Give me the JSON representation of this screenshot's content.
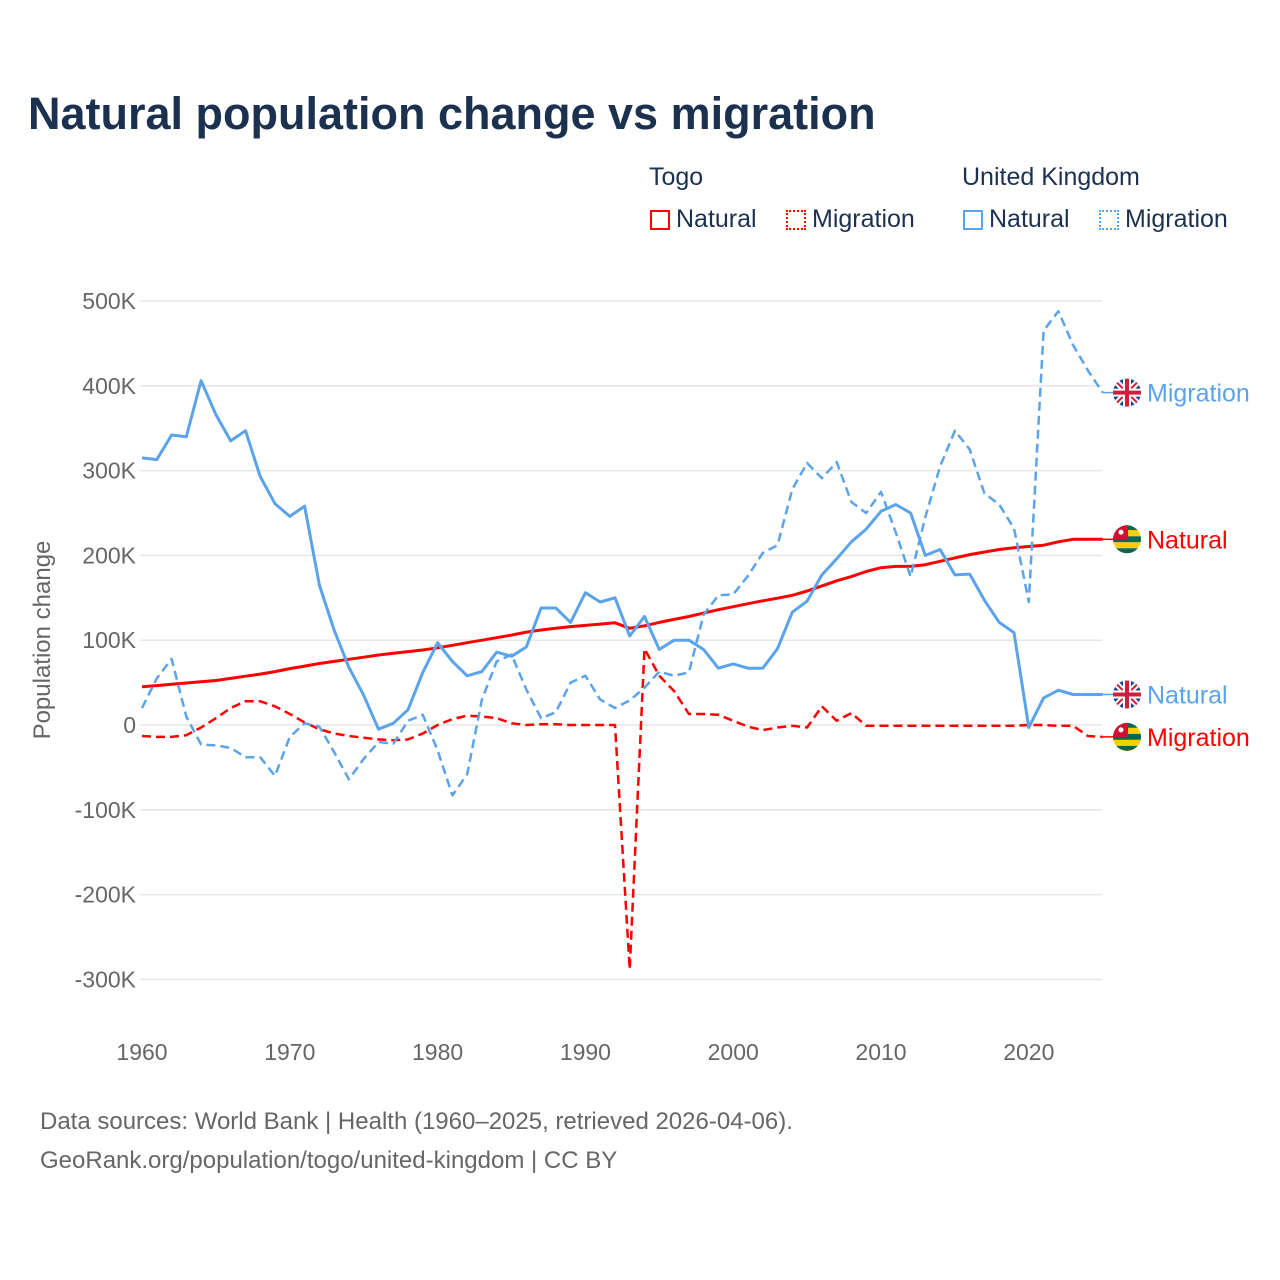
{
  "title": "Natural population change vs migration",
  "legend": {
    "groups": [
      {
        "name": "Togo",
        "items": [
          {
            "label": "Natural",
            "style": "solid"
          },
          {
            "label": "Migration",
            "style": "dotted"
          }
        ],
        "color": "#ff0000"
      },
      {
        "name": "United Kingdom",
        "items": [
          {
            "label": "Natural",
            "style": "solid"
          },
          {
            "label": "Migration",
            "style": "dotted"
          }
        ],
        "color": "#5ba3ea"
      }
    ]
  },
  "source": {
    "line1": "Data sources: World Bank | Health (1960–2025, retrieved 2026-04-06).",
    "line2": "GeoRank.org/population/togo/united-kingdom | CC BY"
  },
  "chart_data": {
    "type": "line",
    "title": "Natural population change vs migration",
    "xlabel": "",
    "ylabel": "Population change",
    "xlim": [
      1960,
      2025
    ],
    "ylim": [
      -300000,
      500000
    ],
    "x_ticks": [
      1960,
      1970,
      1980,
      1990,
      2000,
      2010,
      2020
    ],
    "x_tick_labels": [
      "1960",
      "1970",
      "1980",
      "1990",
      "2000",
      "2010",
      "2020"
    ],
    "y_ticks": [
      500000,
      400000,
      300000,
      200000,
      100000,
      0,
      -100000,
      -200000,
      -300000
    ],
    "y_tick_labels": [
      "500K",
      "400K",
      "300K",
      "200K",
      "100K",
      "0",
      "-100K",
      "-200K",
      "-300K"
    ],
    "grid": true,
    "legend_position": "top-right",
    "x": [
      1960,
      1961,
      1962,
      1963,
      1964,
      1965,
      1966,
      1967,
      1968,
      1969,
      1970,
      1971,
      1972,
      1973,
      1974,
      1975,
      1976,
      1977,
      1978,
      1979,
      1980,
      1981,
      1982,
      1983,
      1984,
      1985,
      1986,
      1987,
      1988,
      1989,
      1990,
      1991,
      1992,
      1993,
      1994,
      1995,
      1996,
      1997,
      1998,
      1999,
      2000,
      2001,
      2002,
      2003,
      2004,
      2005,
      2006,
      2007,
      2008,
      2009,
      2010,
      2011,
      2012,
      2013,
      2014,
      2015,
      2016,
      2017,
      2018,
      2019,
      2020,
      2021,
      2022,
      2023,
      2024,
      2025
    ],
    "series": [
      {
        "name": "Togo Natural",
        "country": "Togo",
        "kind": "Natural",
        "color": "#ff0000",
        "dashed": false,
        "end_label": "Natural",
        "flag": "togo",
        "values": [
          45000,
          46500,
          48000,
          49500,
          51000,
          52500,
          55000,
          57500,
          60000,
          63000,
          66500,
          69500,
          72500,
          75000,
          77500,
          80000,
          82500,
          84500,
          86500,
          88500,
          91000,
          94000,
          97000,
          100000,
          103000,
          106000,
          109500,
          112000,
          114000,
          116000,
          117500,
          119000,
          120500,
          114000,
          117000,
          121000,
          124500,
          128000,
          132000,
          136000,
          139500,
          143000,
          146500,
          149500,
          153000,
          158000,
          164000,
          170000,
          175000,
          181000,
          185500,
          187000,
          187000,
          189000,
          193000,
          197000,
          201000,
          204000,
          207000,
          209000,
          210500,
          212000,
          216000,
          219000,
          219000,
          219000
        ]
      },
      {
        "name": "Togo Migration",
        "country": "Togo",
        "kind": "Migration",
        "color": "#ff0000",
        "dashed": true,
        "end_label": "Migration",
        "flag": "togo",
        "values": [
          -13000,
          -14000,
          -14000,
          -12000,
          -3000,
          8000,
          20000,
          28000,
          28000,
          22000,
          13000,
          3000,
          -5000,
          -10000,
          -13000,
          -15000,
          -17000,
          -18000,
          -17000,
          -10000,
          0,
          7000,
          11000,
          10000,
          8000,
          2000,
          0,
          1000,
          1000,
          0,
          0,
          0,
          0,
          -288000,
          90000,
          58000,
          40000,
          13000,
          13000,
          12000,
          5000,
          -2000,
          -6000,
          -3000,
          -1000,
          -3000,
          22000,
          5000,
          14000,
          -1000,
          -1000,
          -1000,
          -1000,
          -1000,
          -1000,
          -1000,
          -1000,
          -1000,
          -1000,
          -1000,
          0,
          0,
          -1000,
          -1000,
          -13000,
          -14000
        ]
      },
      {
        "name": "United Kingdom Natural",
        "country": "United Kingdom",
        "kind": "Natural",
        "color": "#5ba3ea",
        "dashed": false,
        "end_label": "Natural",
        "flag": "uk",
        "values": [
          315000,
          313000,
          342000,
          340000,
          406000,
          366000,
          335000,
          347000,
          293000,
          261000,
          246000,
          258000,
          165000,
          112000,
          68000,
          35000,
          -5000,
          2000,
          18000,
          62000,
          97000,
          75000,
          58000,
          63000,
          86000,
          81000,
          92000,
          138000,
          138000,
          121000,
          156000,
          145000,
          150000,
          105000,
          128000,
          89000,
          100000,
          100000,
          89000,
          67000,
          72000,
          67000,
          67000,
          90000,
          133000,
          146000,
          177000,
          196000,
          216000,
          231000,
          252000,
          260000,
          250000,
          200000,
          207000,
          177000,
          178000,
          147000,
          121000,
          109000,
          -3000,
          32000,
          41000,
          36000,
          36000,
          36000
        ]
      },
      {
        "name": "United Kingdom Migration",
        "country": "United Kingdom",
        "kind": "Migration",
        "color": "#5ba3ea",
        "dashed": true,
        "end_label": "Migration",
        "flag": "uk",
        "values": [
          20000,
          55000,
          78000,
          10000,
          -23000,
          -24000,
          -27000,
          -38000,
          -38000,
          -60000,
          -14000,
          2000,
          -2000,
          -32000,
          -64000,
          -40000,
          -20000,
          -22000,
          5000,
          12000,
          -30000,
          -83000,
          -58000,
          30000,
          75000,
          83000,
          42000,
          8000,
          15000,
          50000,
          58000,
          30000,
          20000,
          29000,
          44000,
          63000,
          58000,
          62000,
          130000,
          153000,
          154000,
          176000,
          203000,
          212000,
          278000,
          309000,
          291000,
          310000,
          263000,
          250000,
          275000,
          227000,
          175000,
          245000,
          305000,
          347000,
          325000,
          273000,
          260000,
          232000,
          145000,
          465000,
          488000,
          448000,
          418000,
          392000
        ]
      }
    ]
  }
}
